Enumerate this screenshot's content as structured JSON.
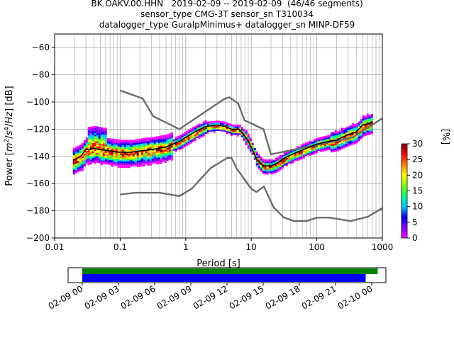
{
  "header": {
    "title_line1": "BK.OAKV.00.HHN   2019-02-09 -- 2019-02-09  (46/46 segments)",
    "title_line2": "sensor_type CMG-3T sensor_sn T310034",
    "title_line3": "datalogger_type GuralpMinimus+ datalogger_sn MINP-DF59"
  },
  "colors": {
    "noise_model": "#6b6b6b",
    "mean_curve": "#000000",
    "grid": "#b0b0b0",
    "timeline_green": "#008000",
    "timeline_blue": "#0000ff",
    "colormap": [
      "#ffffff",
      "#ff00ff",
      "#8000ff",
      "#0000ff",
      "#00c8ff",
      "#00ff80",
      "#80ff00",
      "#ffff00",
      "#ff8000",
      "#ff0000",
      "#800000"
    ]
  },
  "chart_data": [
    {
      "type": "heatmap",
      "xlabel": "Period [s]",
      "ylabel": "Power [m²/s⁴/Hz] [dB]",
      "xscale": "log",
      "xlim": [
        0.01,
        1000
      ],
      "ylim": [
        -200,
        -50
      ],
      "grid": true,
      "x_ticks": [
        "0.01",
        "0.1",
        "1",
        "10",
        "100",
        "1000"
      ],
      "y_ticks": [
        "−60",
        "−80",
        "−100",
        "−120",
        "−140",
        "−160",
        "−180",
        "−200"
      ],
      "colorbar": {
        "label": "[%]",
        "range": [
          0,
          30
        ],
        "ticks": [
          "0",
          "5",
          "10",
          "15",
          "20",
          "25",
          "30"
        ]
      },
      "series": [
        {
          "name": "",
          "role": "new high noise model",
          "x": [
            0.1,
            0.22,
            0.32,
            0.8,
            3.8,
            4.6,
            6.3,
            7.9,
            15.4,
            20,
            354.8,
            1000
          ],
          "y": [
            -91.5,
            -97.4,
            -110.5,
            -120,
            -98,
            -96.5,
            -101,
            -113.5,
            -120,
            -138.5,
            -126,
            -112
          ]
        },
        {
          "name": "",
          "role": "new low noise model",
          "x": [
            0.1,
            0.17,
            0.4,
            0.8,
            1.24,
            2.4,
            4.3,
            5,
            6,
            10,
            12,
            15.6,
            21.9,
            31.6,
            45,
            70,
            101,
            154,
            328,
            600,
            1000
          ],
          "y": [
            -168,
            -166.7,
            -166.7,
            -169.2,
            -163.7,
            -148.6,
            -141.1,
            -141.1,
            -149,
            -163.8,
            -166.2,
            -162.1,
            -177.5,
            -185,
            -187.5,
            -187.5,
            -185,
            -185,
            -187.5,
            -184.4,
            -178
          ]
        },
        {
          "name": "",
          "role": "mean",
          "x": [
            0.019,
            0.025,
            0.03,
            0.04,
            0.05,
            0.07,
            0.1,
            0.15,
            0.2,
            0.3,
            0.5,
            0.8,
            1.0,
            1.5,
            2.0,
            3.0,
            4.0,
            5.0,
            6.5,
            8.0,
            10,
            12,
            15,
            20,
            25,
            30,
            40,
            50,
            70,
            100,
            150,
            200,
            300,
            400,
            500,
            700
          ],
          "y": [
            -143,
            -140,
            -135,
            -134,
            -135,
            -136,
            -137,
            -137,
            -136,
            -135,
            -133,
            -129,
            -126,
            -121,
            -118,
            -117,
            -118,
            -120,
            -120,
            -125,
            -133,
            -142,
            -147,
            -147,
            -145,
            -142,
            -139,
            -137,
            -134,
            -131,
            -129,
            -128,
            -124,
            -122,
            -117,
            -115
          ]
        }
      ]
    },
    {
      "type": "bar",
      "role": "data availability timeline",
      "x_ticks": [
        "02-09 00",
        "02-09 03",
        "02-09 06",
        "02-09 09",
        "02-09 12",
        "02-09 15",
        "02-09 18",
        "02-09 21",
        "02-10 00"
      ],
      "series": [
        {
          "name": "",
          "start": "02-09 00:00",
          "end": "02-10 00:30",
          "color": "#008000"
        },
        {
          "name": "",
          "start": "02-09 00:00",
          "end": "02-09 23:30",
          "color": "#0000ff"
        }
      ]
    }
  ]
}
